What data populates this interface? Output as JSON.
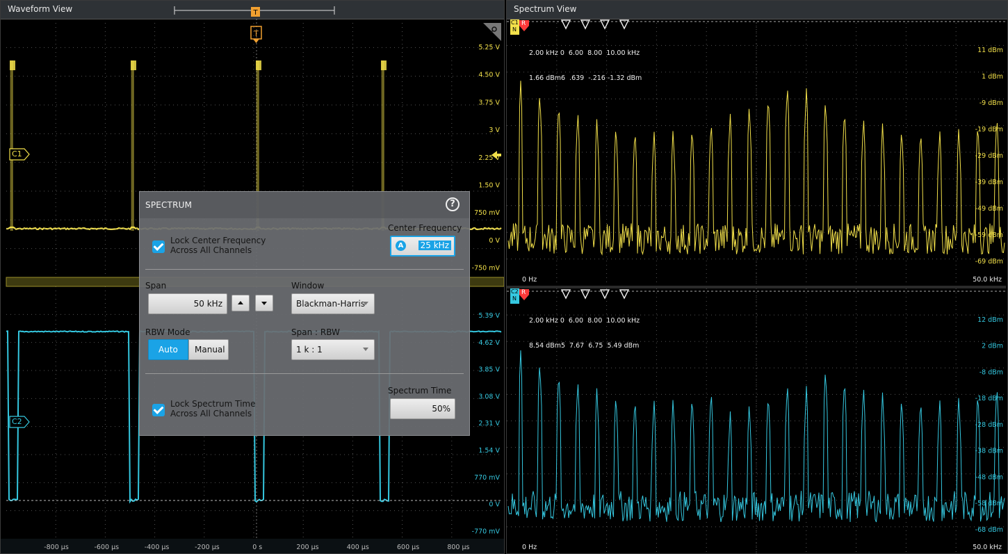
{
  "waveform_view": {
    "title": "Waveform View",
    "trigger_label": "T",
    "channels": [
      {
        "label": "C1",
        "color": "#f2e04a"
      },
      {
        "label": "C2",
        "color": "#35c8e0"
      }
    ],
    "c1_scale": [
      "5.25 V",
      "4.50 V",
      "3.75 V",
      "3 V",
      "2.25 V",
      "1.50 V",
      "750 mV",
      "0 V",
      "-750 mV"
    ],
    "c2_scale": [
      "5.39 V",
      "4.62 V",
      "3.85 V",
      "3.08 V",
      "2.31 V",
      "1.54 V",
      "770 mV",
      "0 V",
      "-770 mV"
    ],
    "time_axis": [
      "-800 µs",
      "-600 µs",
      "-400 µs",
      "-200 µs",
      "0 s",
      "200 µs",
      "400 µs",
      "600 µs",
      "800 µs"
    ]
  },
  "spectrum_view": {
    "title": "Spectrum View",
    "ch1": {
      "badge": "C1",
      "badge_mode": "N",
      "ref_badge": "R",
      "marker_row_freq": "2.00 kHz 0  6.00  8.00  10.00 kHz",
      "marker_row_level": "1.66 dBm6  .639  -.216 -1.32 dBm",
      "scale": [
        "11 dBm",
        "1 dBm",
        "-9 dBm",
        "-19 dBm",
        "-29 dBm",
        "-39 dBm",
        "-49 dBm",
        "-59 dBm",
        "-69 dBm"
      ],
      "start": "0 Hz",
      "stop": "50.0 kHz"
    },
    "ch2": {
      "badge": "C2",
      "badge_mode": "N",
      "ref_badge": "R",
      "marker_row_freq": "2.00 kHz 0  6.00  8.00  10.00 kHz",
      "marker_row_level": "8.54 dBm5  7.67  6.75  5.49 dBm",
      "scale": [
        "12 dBm",
        "2 dBm",
        "-8 dBm",
        "-18 dBm",
        "-28 dBm",
        "-38 dBm",
        "-48 dBm",
        "-58 dBm",
        "-68 dBm"
      ],
      "start": "0 Hz",
      "stop": "50.0 kHz"
    }
  },
  "dialog": {
    "title": "SPECTRUM",
    "lock_center_label": "Lock Center Frequency\nAcross All Channels",
    "lock_center_checked": true,
    "center_frequency_label": "Center Frequency",
    "center_frequency_value": "25 kHz",
    "center_frequency_badge": "A",
    "span_label": "Span",
    "span_value": "50 kHz",
    "window_label": "Window",
    "window_value": "Blackman-Harris",
    "rbw_mode_label": "RBW Mode",
    "rbw_auto": "Auto",
    "rbw_manual": "Manual",
    "rbw_selected": "Auto",
    "span_rbw_label": "Span : RBW",
    "span_rbw_value": "1 k : 1",
    "lock_time_label": "Lock Spectrum Time\nAcross All Channels",
    "lock_time_checked": true,
    "spectrum_time_label": "Spectrum Time",
    "spectrum_time_value": "50%"
  },
  "colors": {
    "ch1": "#f2e04a",
    "ch2": "#35c8e0",
    "marker_red": "#ff3a3a",
    "accent_blue": "#1aa3e6",
    "trigger_orange": "#f0a030"
  }
}
